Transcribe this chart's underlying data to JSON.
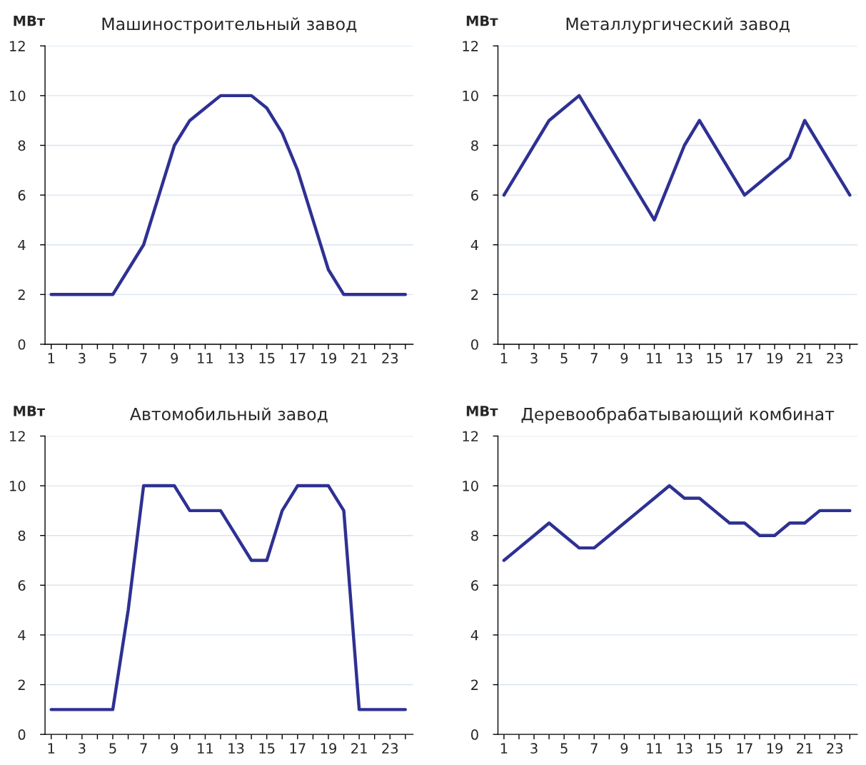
{
  "chart_data": [
    {
      "type": "line",
      "title": "Машиностроительный завод",
      "ylabel": "МВт",
      "categories": [
        "1",
        null,
        "3",
        null,
        "5",
        null,
        "7",
        null,
        "9",
        null,
        "11",
        null,
        "13",
        null,
        "15",
        null,
        "17",
        null,
        "19",
        null,
        "21",
        null,
        "23",
        null
      ],
      "ylim": [
        0,
        12
      ],
      "yticks": [
        0,
        2,
        4,
        6,
        8,
        10,
        12
      ],
      "grid": "y",
      "marker": "none",
      "line_style": "solid",
      "series": [
        {
          "color": "#2e3192",
          "values": [
            2,
            2,
            2,
            2,
            2,
            3,
            4,
            6,
            8,
            9,
            9.5,
            10,
            10,
            10,
            9.5,
            8.5,
            7,
            5,
            3,
            2,
            2,
            2,
            2,
            2
          ]
        }
      ]
    },
    {
      "type": "line",
      "title": "Металлургический завод",
      "ylabel": "МВт",
      "categories": [
        "1",
        null,
        "3",
        null,
        "5",
        null,
        "7",
        null,
        "9",
        null,
        "11",
        null,
        "13",
        null,
        "15",
        null,
        "17",
        null,
        "19",
        null,
        "21",
        null,
        "23",
        null
      ],
      "ylim": [
        0,
        12
      ],
      "yticks": [
        0,
        2,
        4,
        6,
        8,
        10,
        12
      ],
      "grid": "y",
      "marker": "none",
      "line_style": "solid",
      "series": [
        {
          "color": "#2e3192",
          "values": [
            6,
            7,
            8,
            9,
            9.5,
            10,
            9,
            8,
            7,
            6,
            5,
            6.5,
            8,
            9,
            8,
            7,
            6,
            6.5,
            7,
            7.5,
            9,
            8,
            7,
            6
          ]
        }
      ]
    },
    {
      "type": "line",
      "title": "Автомобильный завод",
      "ylabel": "МВт",
      "categories": [
        "1",
        null,
        "3",
        null,
        "5",
        null,
        "7",
        null,
        "9",
        null,
        "11",
        null,
        "13",
        null,
        "15",
        null,
        "17",
        null,
        "19",
        null,
        "21",
        null,
        "23",
        null
      ],
      "ylim": [
        0,
        12
      ],
      "yticks": [
        0,
        2,
        4,
        6,
        8,
        10,
        12
      ],
      "grid": "y",
      "marker": "none",
      "line_style": "solid",
      "series": [
        {
          "color": "#2e3192",
          "values": [
            1,
            1,
            1,
            1,
            1,
            5,
            10,
            10,
            10,
            9,
            9,
            9,
            8,
            7,
            7,
            9,
            10,
            10,
            10,
            9,
            1,
            1,
            1,
            1
          ]
        }
      ]
    },
    {
      "type": "line",
      "title": "Деревообрабатывающий комбинат",
      "ylabel": "МВт",
      "categories": [
        "1",
        null,
        "3",
        null,
        "5",
        null,
        "7",
        null,
        "9",
        null,
        "11",
        null,
        "13",
        null,
        "15",
        null,
        "17",
        null,
        "19",
        null,
        "21",
        null,
        "23",
        null
      ],
      "ylim": [
        0,
        12
      ],
      "yticks": [
        0,
        2,
        4,
        6,
        8,
        10,
        12
      ],
      "grid": "y",
      "marker": "none",
      "line_style": "solid",
      "series": [
        {
          "color": "#2e3192",
          "values": [
            7,
            7.5,
            8,
            8.5,
            8,
            7.5,
            7.5,
            8,
            8.5,
            9,
            9.5,
            10,
            9.5,
            9.5,
            9,
            8.5,
            8.5,
            8,
            8,
            8.5,
            8.5,
            9,
            9,
            9
          ]
        }
      ]
    }
  ]
}
